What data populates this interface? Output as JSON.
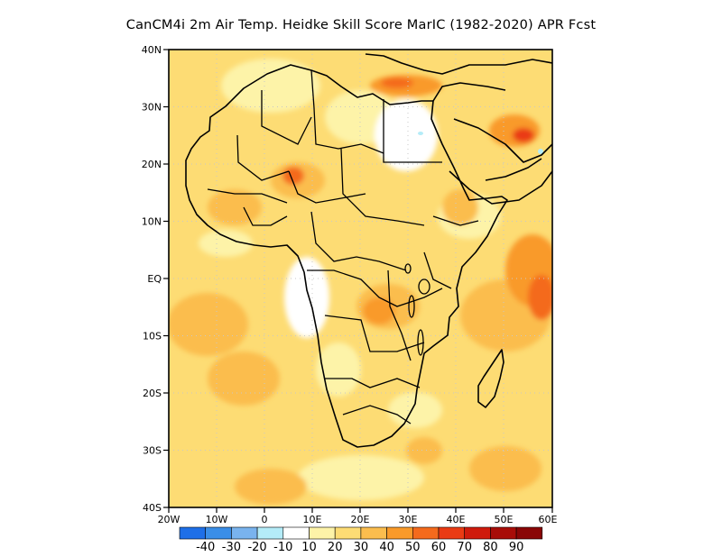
{
  "title": "CanCM4i  2m Air Temp. Heidke Skill Score MarIC (1982-2020) APR Fcst",
  "map": {
    "lat_labels": [
      "40N",
      "30N",
      "20N",
      "10N",
      "EQ",
      "10S",
      "20S",
      "30S",
      "40S"
    ],
    "lon_labels": [
      "20W",
      "10W",
      "0",
      "10E",
      "20E",
      "30E",
      "40E",
      "50E",
      "60E"
    ],
    "extent": {
      "lon_min": -20,
      "lon_max": 60,
      "lat_min": -40,
      "lat_max": 40
    }
  },
  "colorbar": {
    "labels": [
      "-40",
      "-30",
      "-20",
      "-10",
      "10",
      "20",
      "30",
      "40",
      "50",
      "60",
      "70",
      "80",
      "90"
    ],
    "colors": [
      "#1e6fe8",
      "#3a8ee8",
      "#79b3ee",
      "#b4ecf8",
      "#ffffff",
      "#fdf3a8",
      "#fddc74",
      "#fbbd4e",
      "#f99a2a",
      "#f46a1c",
      "#ea3b14",
      "#cf1b0c",
      "#a80d08",
      "#8a0606"
    ]
  }
}
